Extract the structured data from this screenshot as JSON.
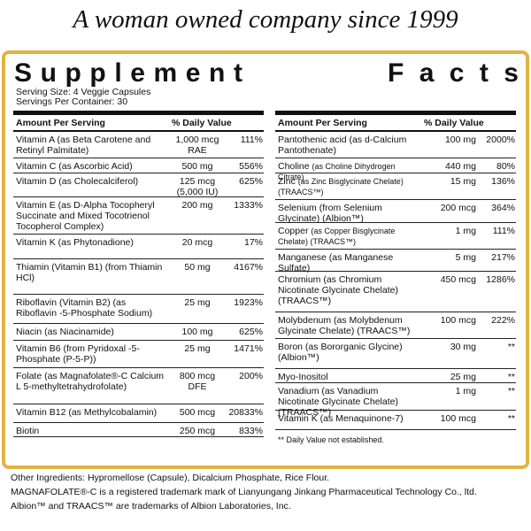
{
  "tagline": "A woman owned company since 1999",
  "title_word1": [
    "S",
    "u",
    "p",
    "p",
    "l",
    "e",
    "m",
    "e",
    "n",
    "t"
  ],
  "title_word2": [
    "F",
    "a",
    "c",
    "t",
    "s"
  ],
  "serving_size": "Serving Size: 4 Veggie Capsules",
  "servings_per_container": "Servings Per Container: 30",
  "header_amount": "Amount Per Serving",
  "header_dv": "% Daily Value",
  "left_rows": [
    {
      "name": "Vitamin A (as Beta Carotene and Retinyl Palmitate)",
      "amount": "1,000 mcg RAE",
      "dv": "111%"
    },
    {
      "name": "Vitamin C (as Ascorbic Acid)",
      "amount": "500 mg",
      "dv": "556%"
    },
    {
      "name": "Vitamin D (as Cholecalciferol)",
      "amount": "125 mcg (5,000 IU)",
      "dv": "625%"
    },
    {
      "name": "Vitamin E (as D-Alpha Tocopheryl Succinate and Mixed Tocotrienol Tocopherol Complex)",
      "amount": "200 mg",
      "dv": "1333%"
    },
    {
      "name": "Vitamin K (as Phytonadione)",
      "amount": "20 mcg",
      "dv": "17%"
    },
    {
      "name": "Thiamin (Vitamin B1) (from Thiamin HCl)",
      "amount": "50 mg",
      "dv": "4167%"
    },
    {
      "name": "Riboflavin (Vitamin B2) (as Riboflavin -5-Phosphate Sodium)",
      "amount": "25 mg",
      "dv": "1923%"
    },
    {
      "name": "Niacin (as Niacinamide)",
      "amount": "100 mg",
      "dv": "625%"
    },
    {
      "name": "Vitamin B6 (from Pyridoxal -5-Phosphate (P-5-P))",
      "amount": "25 mg",
      "dv": "1471%"
    },
    {
      "name": "Folate (as Magnafolate®-C Calcium L 5-methyltetrahydrofolate)",
      "amount": "800 mcg DFE",
      "dv": "200%"
    },
    {
      "name": "Vitamin B12 (as Methylcobalamin)",
      "amount": "500 mcg",
      "dv": "20833%"
    },
    {
      "name": "Biotin",
      "amount": "250 mcg",
      "dv": "833%"
    }
  ],
  "right_rows": [
    {
      "name": "Pantothenic acid (as d-Calcium Pantothenate)",
      "amount": "100 mg",
      "dv": "2000%"
    },
    {
      "name": "Choline",
      "small": "(as Choline Dihydrogen Citrate)",
      "amount": "440 mg",
      "dv": "80%"
    },
    {
      "name": "Zinc",
      "small": "(as Zinc Bisglycinate Chelate) (TRAACS™)",
      "amount": "15 mg",
      "dv": "136%"
    },
    {
      "name": "Selenium (from Selenium Glycinate) (Albion™)",
      "amount": "200 mcg",
      "dv": "364%"
    },
    {
      "name": "Copper",
      "small": "(as Copper Bisglycinate Chelate) (TRAACS™)",
      "amount": "1 mg",
      "dv": "111%"
    },
    {
      "name": "Manganese (as Manganese Sulfate)",
      "amount": "5 mg",
      "dv": "217%"
    },
    {
      "name": "Chromium (as Chromium Nicotinate Glycinate Chelate) (TRAACS™)",
      "amount": "450 mcg",
      "dv": "1286%"
    },
    {
      "name": "Molybdenum (as Molybdenum Glycinate Chelate) (TRAACS™)",
      "amount": "100 mcg",
      "dv": "222%"
    },
    {
      "name": "Boron (as Bororganic Glycine) (Albion™)",
      "amount": "30 mg",
      "dv": "**"
    },
    {
      "name": "Myo-Inositol",
      "amount": "25 mg",
      "dv": "**"
    },
    {
      "name": "Vanadium (as Vanadium Nicotinate Glycinate Chelate) (TRAACS™)",
      "amount": "1 mg",
      "dv": "**"
    },
    {
      "name": "Vitamin K (as Menaquinone-7)",
      "amount": "100 mcg",
      "dv": "**"
    }
  ],
  "footnote": "** Daily Value not established.",
  "other_ingredients": "Other Ingredients: Hypromellose (Capsule), Dicalcium Phosphate, Rice Flour.",
  "trademark1": "MAGNAFOLATE®-C is a registered trademark mark of Lianyungang Jinkang Pharmaceutical Technology Co., ltd.",
  "trademark2": "Albion™ and TRAACS™ are trademarks of Albion Laboratories, Inc.",
  "colors": {
    "border": "#e2b342",
    "text": "#111111"
  }
}
